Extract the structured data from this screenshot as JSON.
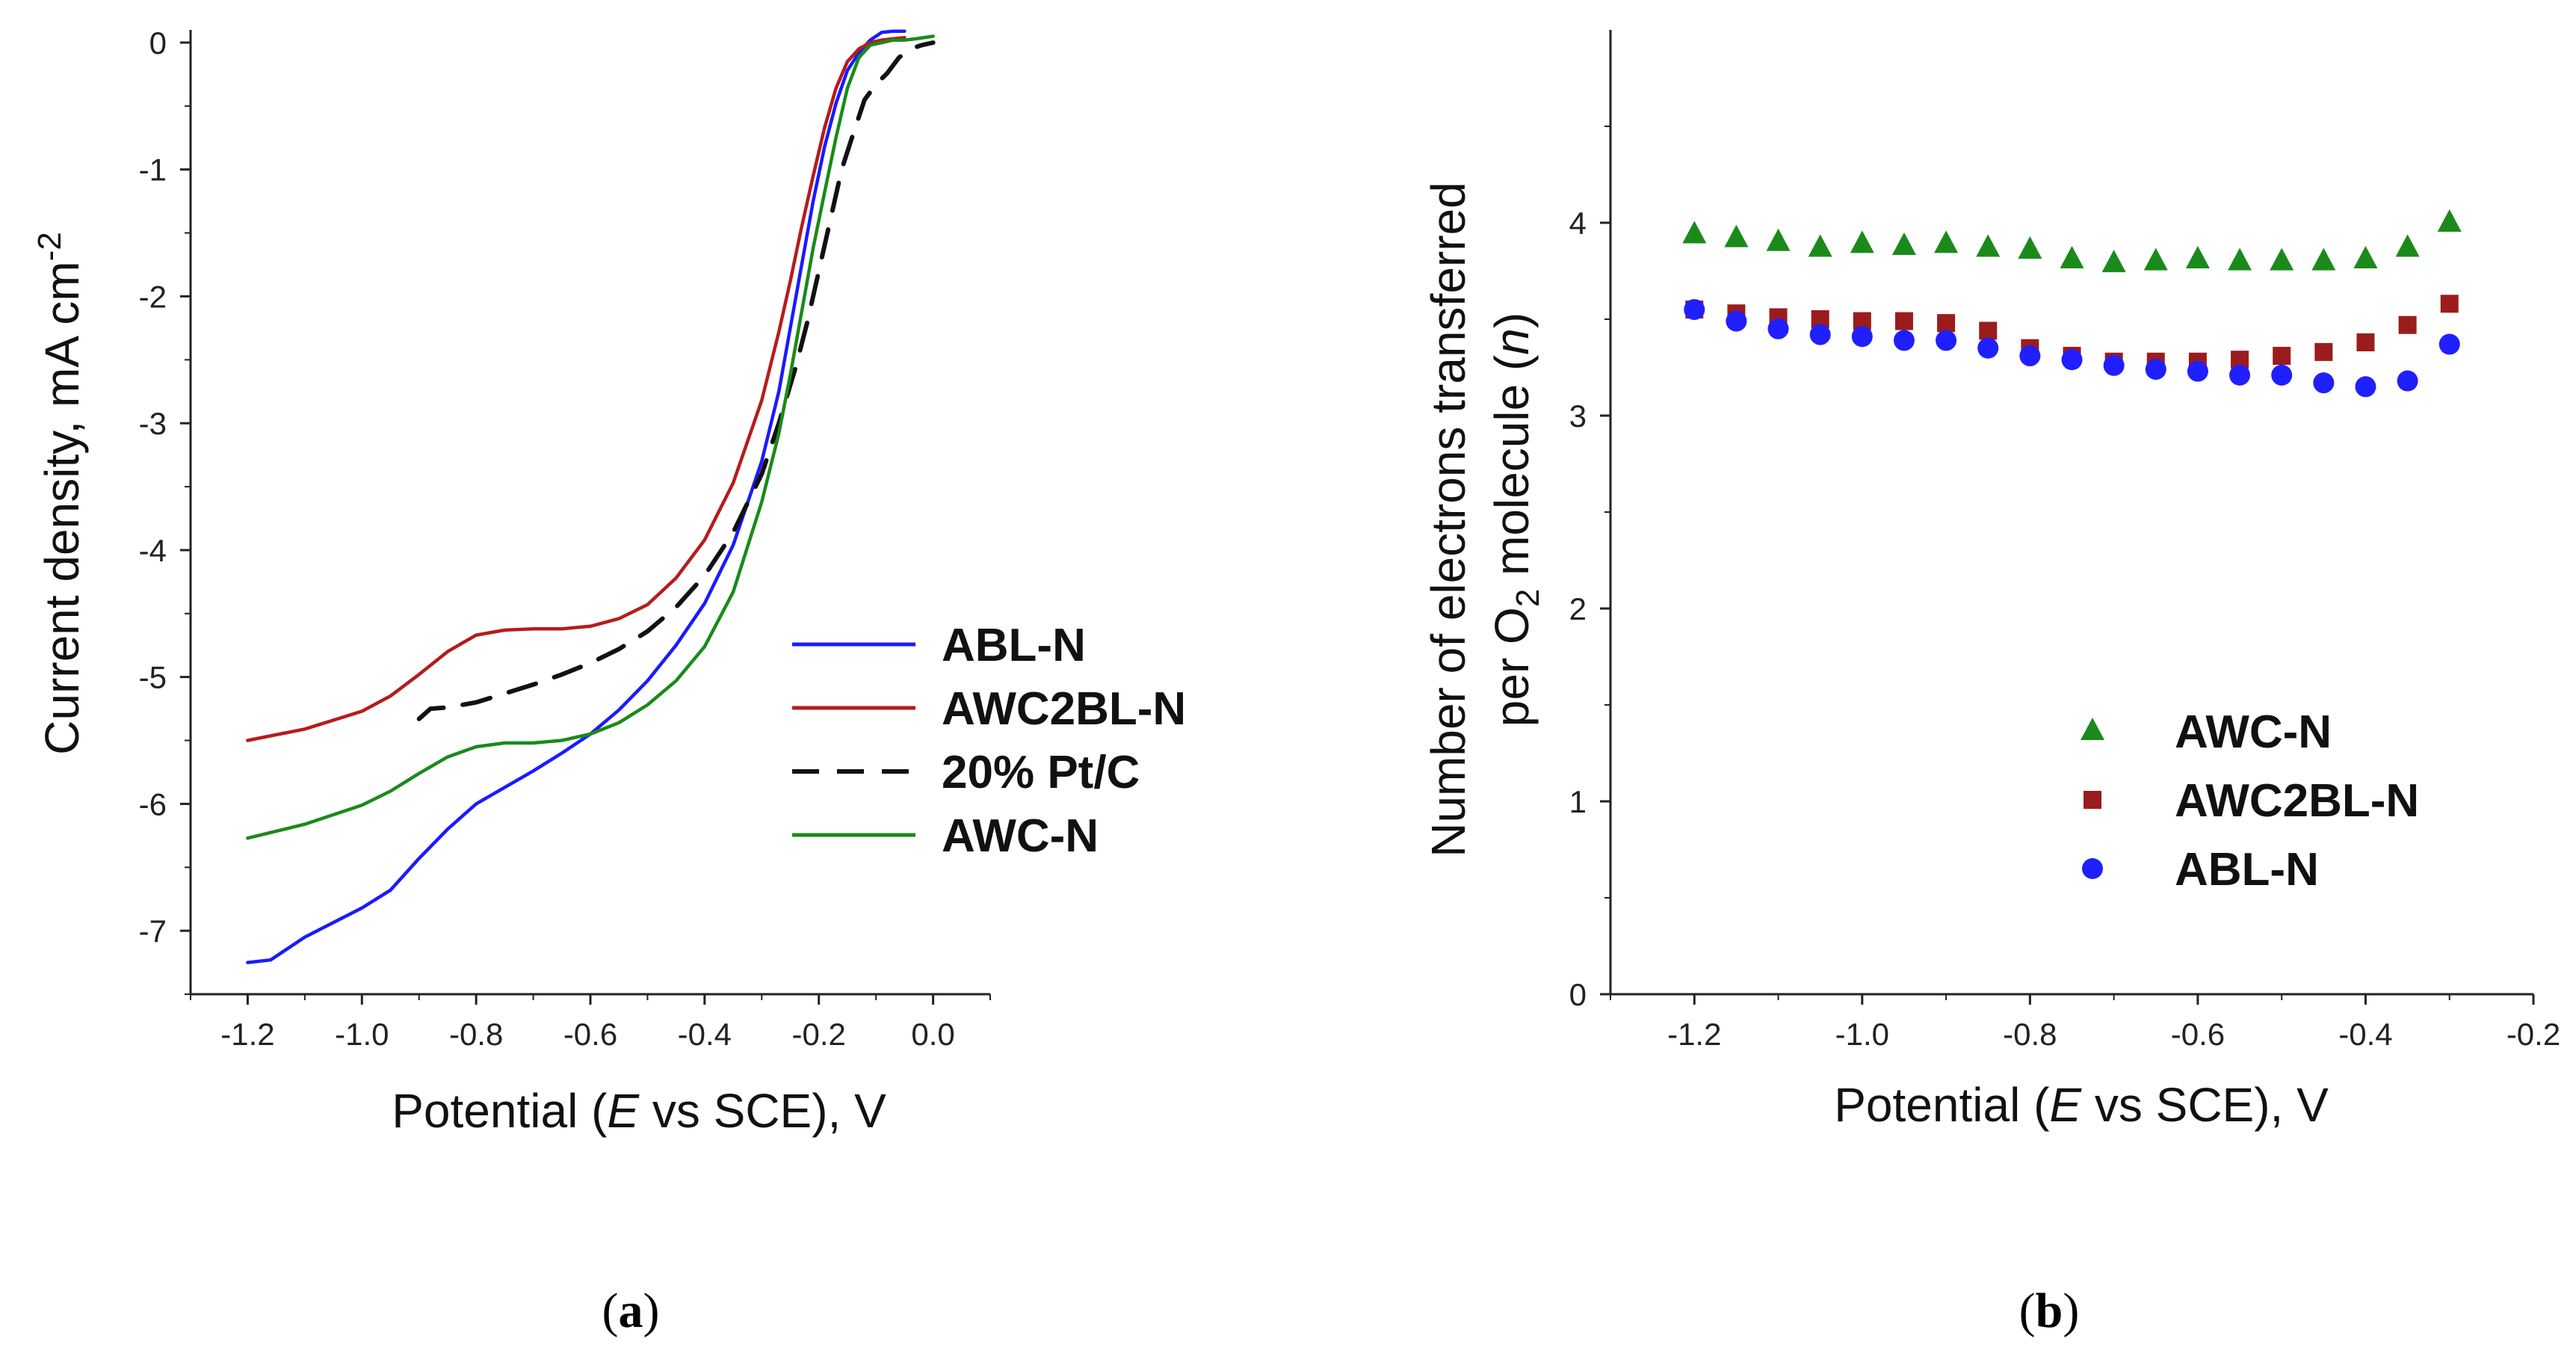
{
  "chart_data": [
    {
      "type": "line",
      "panel_label": "a",
      "xlabel": {
        "prefix": "Potential  (",
        "var": "E",
        "suffix": " vs SCE), V"
      },
      "ylabel": {
        "text": "Current density, mA cm",
        "sup": "-2"
      },
      "xlim": [
        -1.3,
        0.1
      ],
      "ylim": [
        -7.5,
        0.1
      ],
      "xticks": [
        -1.2,
        -1.0,
        -0.8,
        -0.6,
        -0.4,
        -0.2,
        0.0
      ],
      "xtick_labels": [
        "-1.2",
        "-1.0",
        "-0.8",
        "-0.6",
        "-0.4",
        "-0.2",
        "0.0"
      ],
      "yticks": [
        0,
        -1,
        -2,
        -3,
        -4,
        -5,
        -6,
        -7
      ],
      "ytick_labels": [
        "0",
        "-1",
        "-2",
        "-3",
        "-4",
        "-5",
        "-6",
        "-7"
      ],
      "legend_position": "right",
      "series": [
        {
          "name": "ABL-N",
          "color": "#1a1aff",
          "dash": "solid",
          "x": [
            -1.2,
            -1.16,
            -1.1,
            -1.0,
            -0.95,
            -0.9,
            -0.85,
            -0.8,
            -0.75,
            -0.7,
            -0.65,
            -0.6,
            -0.55,
            -0.5,
            -0.45,
            -0.4,
            -0.35,
            -0.3,
            -0.27,
            -0.25,
            -0.23,
            -0.21,
            -0.19,
            -0.17,
            -0.15,
            -0.13,
            -0.11,
            -0.09,
            -0.07,
            -0.05
          ],
          "y": [
            -7.25,
            -7.23,
            -7.05,
            -6.82,
            -6.68,
            -6.43,
            -6.2,
            -6.0,
            -5.87,
            -5.74,
            -5.6,
            -5.45,
            -5.26,
            -5.03,
            -4.75,
            -4.42,
            -3.96,
            -3.3,
            -2.75,
            -2.25,
            -1.75,
            -1.25,
            -0.82,
            -0.48,
            -0.22,
            -0.08,
            0.02,
            0.08,
            0.09,
            0.09
          ]
        },
        {
          "name": "AWC2BL-N",
          "color": "#b51c1c",
          "dash": "solid",
          "x": [
            -1.2,
            -1.1,
            -1.0,
            -0.95,
            -0.9,
            -0.85,
            -0.8,
            -0.75,
            -0.7,
            -0.65,
            -0.6,
            -0.55,
            -0.5,
            -0.45,
            -0.4,
            -0.35,
            -0.3,
            -0.27,
            -0.25,
            -0.23,
            -0.21,
            -0.19,
            -0.17,
            -0.15,
            -0.13,
            -0.11,
            -0.09,
            -0.07,
            -0.05
          ],
          "y": [
            -5.5,
            -5.41,
            -5.27,
            -5.15,
            -4.98,
            -4.8,
            -4.67,
            -4.63,
            -4.62,
            -4.62,
            -4.6,
            -4.54,
            -4.43,
            -4.22,
            -3.92,
            -3.47,
            -2.82,
            -2.28,
            -1.88,
            -1.45,
            -1.05,
            -0.67,
            -0.36,
            -0.15,
            -0.05,
            0.0,
            0.02,
            0.03,
            0.04
          ]
        },
        {
          "name": "20% Pt/C",
          "color": "#111111",
          "dash": "dashed",
          "x": [
            -0.9,
            -0.88,
            -0.85,
            -0.8,
            -0.75,
            -0.7,
            -0.65,
            -0.6,
            -0.55,
            -0.5,
            -0.45,
            -0.4,
            -0.35,
            -0.3,
            -0.27,
            -0.24,
            -0.22,
            -0.2,
            -0.18,
            -0.16,
            -0.14,
            -0.12,
            -0.1,
            -0.08,
            -0.06,
            -0.04,
            -0.02,
            0.0
          ],
          "y": [
            -5.33,
            -5.25,
            -5.24,
            -5.2,
            -5.13,
            -5.06,
            -4.98,
            -4.89,
            -4.78,
            -4.64,
            -4.45,
            -4.2,
            -3.86,
            -3.4,
            -3.0,
            -2.55,
            -2.2,
            -1.8,
            -1.4,
            -1.0,
            -0.72,
            -0.45,
            -0.33,
            -0.24,
            -0.12,
            -0.05,
            -0.02,
            0.0
          ]
        },
        {
          "name": "AWC-N",
          "color": "#1a8a1a",
          "dash": "solid",
          "x": [
            -1.2,
            -1.1,
            -1.0,
            -0.95,
            -0.9,
            -0.85,
            -0.8,
            -0.75,
            -0.7,
            -0.65,
            -0.6,
            -0.55,
            -0.5,
            -0.45,
            -0.4,
            -0.35,
            -0.3,
            -0.27,
            -0.25,
            -0.23,
            -0.21,
            -0.19,
            -0.17,
            -0.15,
            -0.13,
            -0.11,
            -0.09,
            -0.07,
            -0.05,
            -0.03,
            0.0
          ],
          "y": [
            -6.27,
            -6.16,
            -6.01,
            -5.9,
            -5.76,
            -5.63,
            -5.55,
            -5.52,
            -5.52,
            -5.5,
            -5.45,
            -5.36,
            -5.22,
            -5.03,
            -4.76,
            -4.33,
            -3.62,
            -3.08,
            -2.62,
            -2.12,
            -1.62,
            -1.18,
            -0.75,
            -0.36,
            -0.12,
            -0.02,
            0.0,
            0.02,
            0.02,
            0.03,
            0.05
          ]
        }
      ]
    },
    {
      "type": "scatter",
      "panel_label": "b",
      "xlabel": {
        "prefix": "Potential (",
        "var": "E",
        "suffix": " vs SCE), V"
      },
      "ylabel": {
        "line1": "Number of electrons transferred",
        "line2_prefix": "per O",
        "line2_sub": "2",
        "line2_mid": " molecule (",
        "line2_var": "n",
        "line2_suffix": ")"
      },
      "xlim": [
        -1.3,
        -0.2
      ],
      "ylim": [
        0,
        5
      ],
      "xticks": [
        -1.2,
        -1.0,
        -0.8,
        -0.6,
        -0.4,
        -0.2
      ],
      "xtick_labels": [
        "-1.2",
        "-1.0",
        "-0.8",
        "-0.6",
        "-0.4",
        "-0.2"
      ],
      "yticks": [
        0,
        1,
        2,
        3,
        4
      ],
      "ytick_labels": [
        "0",
        "1",
        "2",
        "3",
        "4"
      ],
      "legend_position": "center-right",
      "series": [
        {
          "name": "AWC-N",
          "color": "#1a8a1a",
          "marker": "triangle",
          "x": [
            -1.2,
            -1.15,
            -1.1,
            -1.05,
            -1.0,
            -0.95,
            -0.9,
            -0.85,
            -0.8,
            -0.75,
            -0.7,
            -0.65,
            -0.6,
            -0.55,
            -0.5,
            -0.45,
            -0.4,
            -0.35,
            -0.3
          ],
          "y": [
            3.94,
            3.92,
            3.9,
            3.87,
            3.89,
            3.88,
            3.89,
            3.87,
            3.86,
            3.81,
            3.79,
            3.8,
            3.81,
            3.8,
            3.8,
            3.8,
            3.81,
            3.87,
            4.0
          ]
        },
        {
          "name": "AWC2BL-N",
          "color": "#9b1c1c",
          "marker": "square",
          "x": [
            -1.2,
            -1.15,
            -1.1,
            -1.05,
            -1.0,
            -0.95,
            -0.9,
            -0.85,
            -0.8,
            -0.75,
            -0.7,
            -0.65,
            -0.6,
            -0.55,
            -0.5,
            -0.45,
            -0.4,
            -0.35,
            -0.3
          ],
          "y": [
            3.55,
            3.53,
            3.51,
            3.5,
            3.49,
            3.49,
            3.48,
            3.44,
            3.35,
            3.31,
            3.28,
            3.28,
            3.28,
            3.29,
            3.31,
            3.33,
            3.38,
            3.47,
            3.58
          ]
        },
        {
          "name": "ABL-N",
          "color": "#1f1fff",
          "marker": "circle",
          "x": [
            -1.2,
            -1.15,
            -1.1,
            -1.05,
            -1.0,
            -0.95,
            -0.9,
            -0.85,
            -0.8,
            -0.75,
            -0.7,
            -0.65,
            -0.6,
            -0.55,
            -0.5,
            -0.45,
            -0.4,
            -0.35,
            -0.3
          ],
          "y": [
            3.55,
            3.49,
            3.45,
            3.42,
            3.41,
            3.39,
            3.39,
            3.35,
            3.31,
            3.29,
            3.26,
            3.24,
            3.23,
            3.21,
            3.21,
            3.17,
            3.15,
            3.18,
            3.37
          ]
        }
      ]
    }
  ]
}
